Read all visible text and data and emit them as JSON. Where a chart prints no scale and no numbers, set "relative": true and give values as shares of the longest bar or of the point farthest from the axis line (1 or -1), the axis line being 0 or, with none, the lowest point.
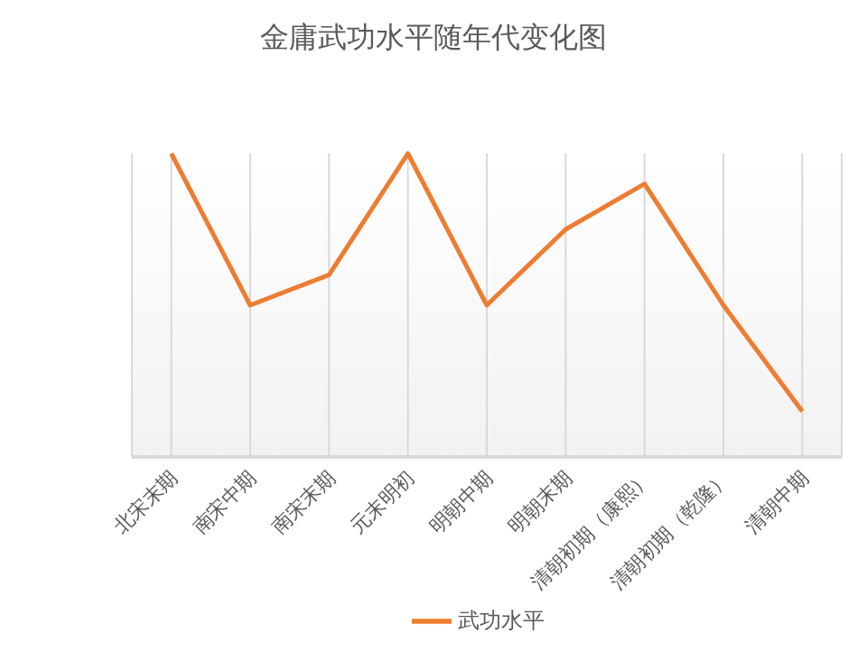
{
  "chart_data": {
    "type": "line",
    "title": "金庸武功水平随年代变化图",
    "categories": [
      "北宋末期",
      "南宋中期",
      "南宋末期",
      "元末明初",
      "明朝中期",
      "明朝末期",
      "清朝初期（康熙）",
      "清朝初期（乾隆）",
      "清朝中期"
    ],
    "series": [
      {
        "name": "武功水平",
        "color": "#ed7d31",
        "values": [
          1,
          0.5,
          0.6,
          1,
          0.5,
          0.75,
          0.9,
          0.5,
          0.15
        ]
      }
    ],
    "relative": true,
    "grid": "x",
    "legend": "bottom",
    "marker": "none"
  }
}
